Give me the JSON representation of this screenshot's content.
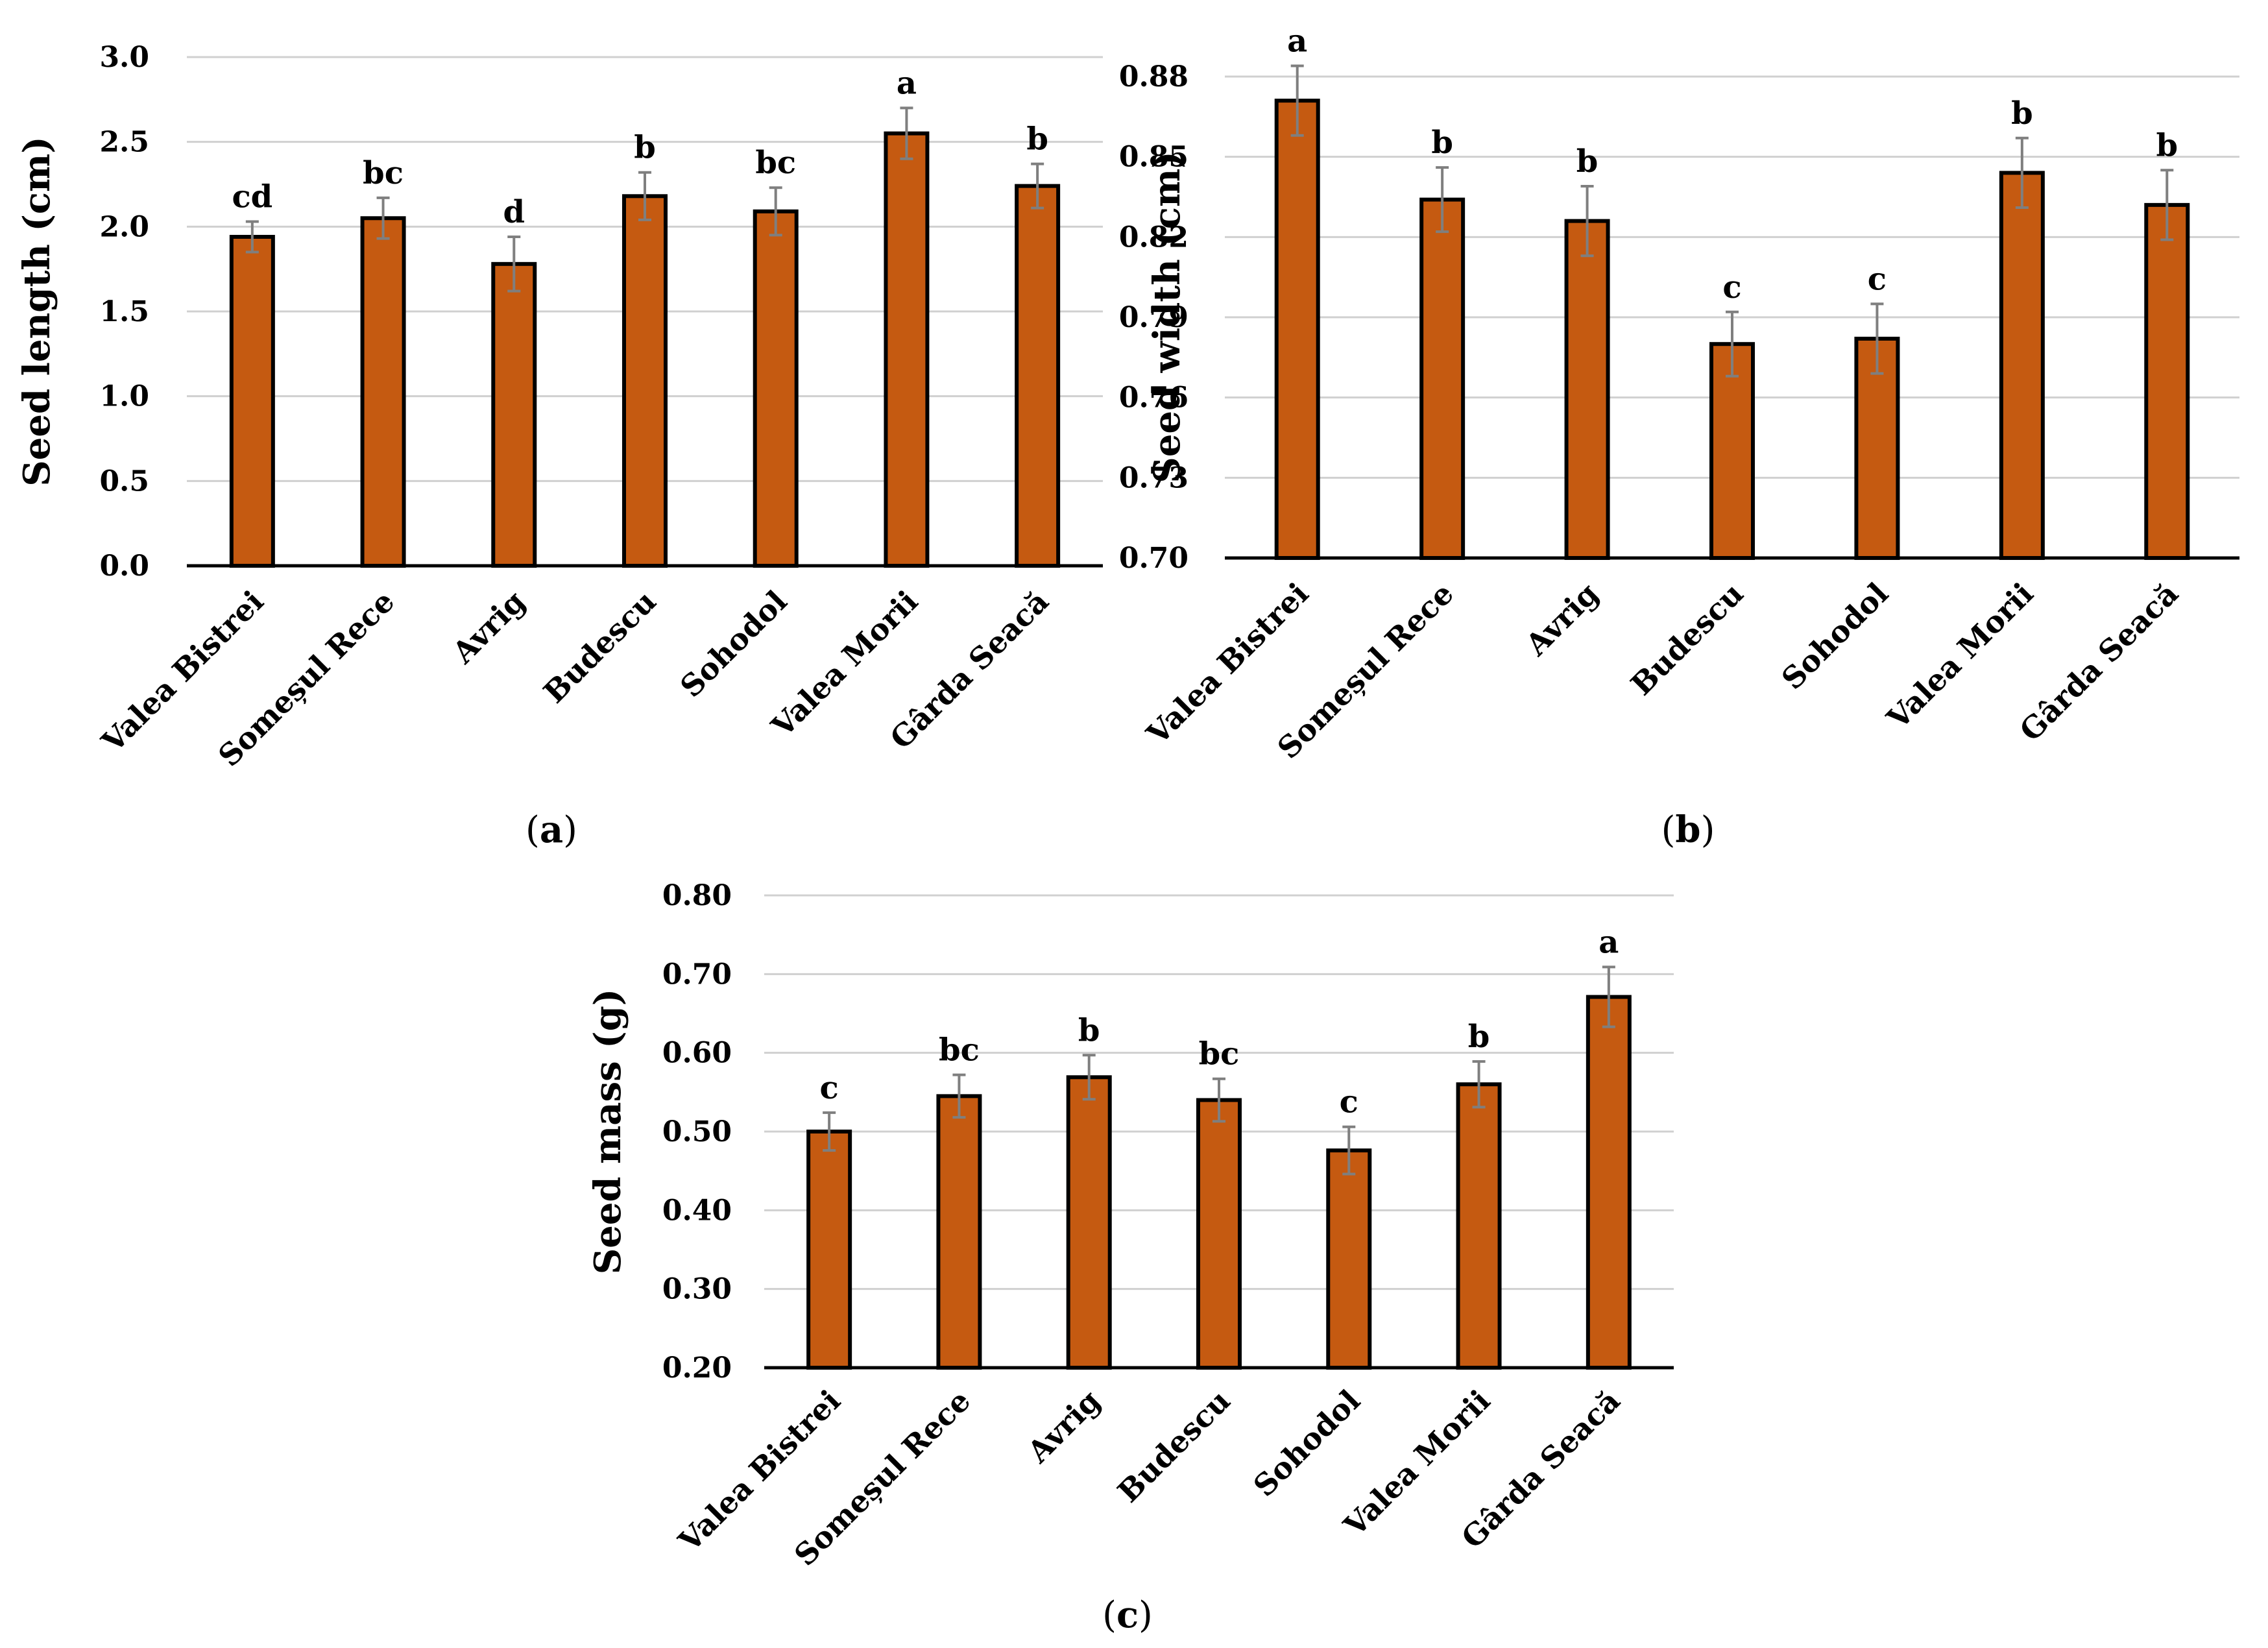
{
  "colors": {
    "bar": "#c55a11",
    "bar_stroke": "#000000",
    "grid": "#d0d0d0",
    "error": "#7f7f7f",
    "axis": "#000000"
  },
  "chart_data": [
    {
      "type": "bar",
      "panel": "a",
      "ylabel": "Seed length (cm)",
      "ylim": [
        0.0,
        3.0
      ],
      "yticks": [
        "0.0",
        "0.5",
        "1.0",
        "1.5",
        "2.0",
        "2.5",
        "3.0"
      ],
      "categories": [
        "Valea Bistrei",
        "Someșul Rece",
        "Avrig",
        "Budescu",
        "Sohodol",
        "Valea Morii",
        "Gârda Seacă"
      ],
      "values": [
        1.94,
        2.05,
        1.78,
        2.18,
        2.09,
        2.55,
        2.24
      ],
      "errors": [
        0.09,
        0.12,
        0.16,
        0.14,
        0.14,
        0.15,
        0.13
      ],
      "letters": [
        "cd",
        "bc",
        "d",
        "b",
        "bc",
        "a",
        "b"
      ]
    },
    {
      "type": "bar",
      "panel": "b",
      "ylabel": "Seed width (cm)",
      "ylim": [
        0.7,
        0.88
      ],
      "yticks": [
        "0.70",
        "0.73",
        "0.76",
        "0.79",
        "0.82",
        "0.85",
        "0.88"
      ],
      "categories": [
        "Valea Bistrei",
        "Someșul Rece",
        "Avrig",
        "Budescu",
        "Sohodol",
        "Valea Morii",
        "Gârda Seacă"
      ],
      "values": [
        0.871,
        0.834,
        0.826,
        0.78,
        0.782,
        0.844,
        0.832
      ],
      "errors": [
        0.013,
        0.012,
        0.013,
        0.012,
        0.013,
        0.013,
        0.013
      ],
      "letters": [
        "a",
        "b",
        "b",
        "c",
        "c",
        "b",
        "b"
      ]
    },
    {
      "type": "bar",
      "panel": "c",
      "ylabel": "Seed mass (g)",
      "ylim": [
        0.2,
        0.8
      ],
      "yticks": [
        "0.20",
        "0.30",
        "0.40",
        "0.50",
        "0.60",
        "0.70",
        "0.80"
      ],
      "categories": [
        "Valea Bistrei",
        "Someșul Rece",
        "Avrig",
        "Budescu",
        "Sohodol",
        "Valea Morii",
        "Gârda Seacă"
      ],
      "values": [
        0.5,
        0.545,
        0.569,
        0.54,
        0.476,
        0.56,
        0.671
      ],
      "errors": [
        0.024,
        0.027,
        0.028,
        0.027,
        0.03,
        0.029,
        0.038
      ],
      "letters": [
        "c",
        "bc",
        "b",
        "bc",
        "c",
        "b",
        "a"
      ]
    }
  ],
  "panel_labels": [
    {
      "open": "(",
      "letter": "a",
      "close": ")"
    },
    {
      "open": "(",
      "letter": "b",
      "close": ")"
    },
    {
      "open": "(",
      "letter": "c",
      "close": ")"
    }
  ]
}
